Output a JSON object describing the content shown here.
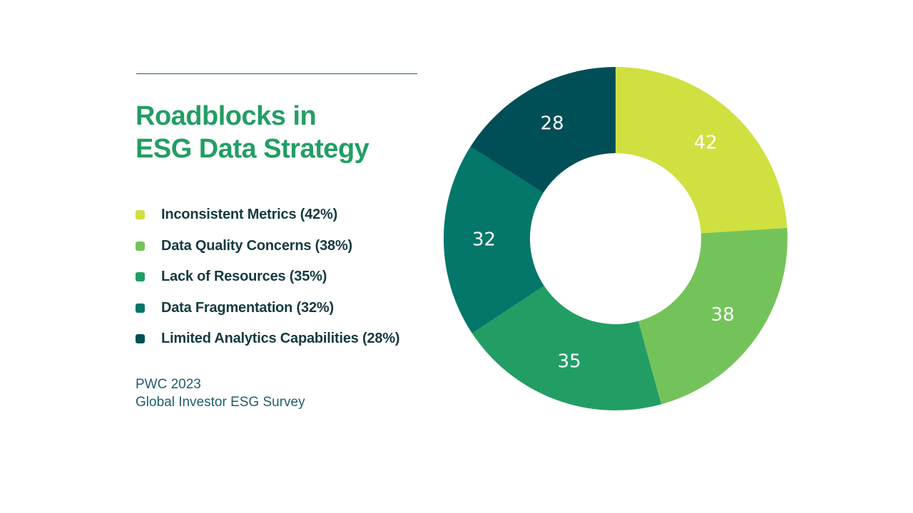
{
  "title": {
    "line1": "Roadblocks in",
    "line2": "ESG Data Strategy"
  },
  "source": {
    "line1": "PWC 2023",
    "line2": "Global Investor ESG Survey"
  },
  "colors": {
    "title": "#229e64",
    "text": "#153a40",
    "rule": "#1f5a6a"
  },
  "chart_data": {
    "type": "pie",
    "donut": true,
    "title": "Roadblocks in ESG Data Strategy",
    "legend_position": "left",
    "categories": [
      "Inconsistent Metrics (42%)",
      "Data Quality Concerns (38%)",
      "Lack of Resources (35%)",
      "Data Fragmentation (32%)",
      "Limited Analytics Capabilities (28%)"
    ],
    "values": [
      42,
      38,
      35,
      32,
      28
    ],
    "data_labels": [
      "42",
      "38",
      "35",
      "32",
      "28"
    ],
    "colors": [
      "#cfe040",
      "#74c35a",
      "#229e64",
      "#02776a",
      "#004f57"
    ]
  }
}
